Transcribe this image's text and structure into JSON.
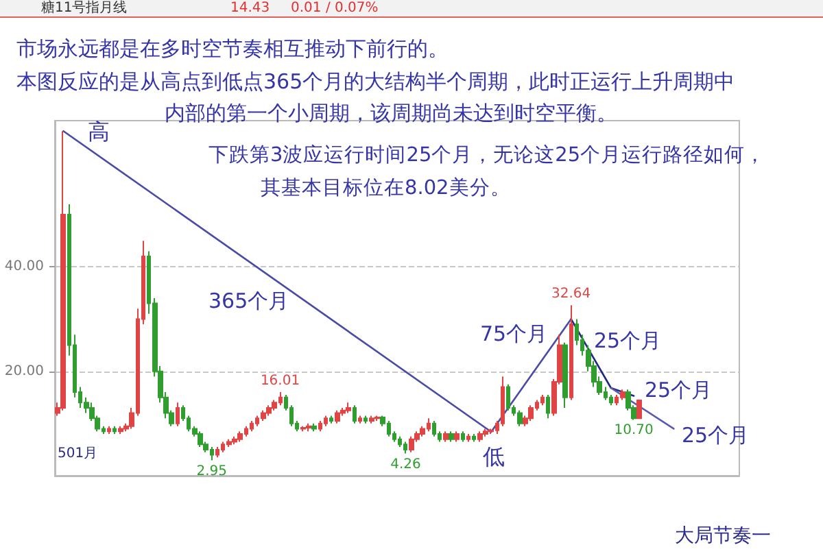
{
  "chart_data": {
    "type": "candlestick",
    "title": "糖11号指月线",
    "categories": [
      null,
      null,
      null,
      null,
      null,
      null,
      null,
      null,
      null,
      null,
      null,
      null,
      null,
      null,
      null,
      null,
      null,
      null,
      null,
      null,
      null,
      null,
      null,
      null,
      null,
      null,
      null,
      null,
      null,
      null,
      null,
      null,
      null,
      null,
      null,
      null,
      null,
      null,
      null,
      null,
      null,
      null,
      null,
      null,
      null,
      null,
      null,
      null,
      null,
      null,
      null,
      null,
      null,
      null,
      null,
      null,
      null,
      null,
      null,
      null,
      null,
      null,
      null,
      null,
      null,
      null,
      null,
      null,
      null,
      null,
      null,
      null,
      null,
      null,
      null,
      null,
      null,
      null,
      null,
      null,
      null,
      null,
      null,
      null,
      null,
      null,
      null,
      null,
      null,
      null,
      null,
      null,
      null,
      null,
      null,
      null,
      null,
      null,
      null,
      null,
      null,
      null,
      null,
      null,
      null,
      null,
      null,
      null,
      null,
      null,
      null,
      null,
      null,
      null,
      null,
      null,
      null,
      null,
      null,
      null
    ],
    "ylim": [
      0,
      68
    ],
    "yticks": [
      {
        "value": 20,
        "label": "20.00"
      },
      {
        "value": 40,
        "label": "40.00"
      }
    ],
    "grid": "y",
    "marker": "none",
    "series": [
      {
        "colors": [
          "#e04545",
          "#e04545",
          "#2f9e2f",
          "#2f9e2f",
          "#2f9e2f",
          "#2f9e2f",
          "#2f9e2f",
          "#2f9e2f",
          "#2f9e2f",
          "#e04545",
          "#2f9e2f",
          "#e04545",
          "#e04545",
          "#e04545",
          "#e04545",
          "#e04545",
          "#2f9e2f",
          "#2f9e2f",
          "#2f9e2f",
          "#2f9e2f",
          "#2f9e2f",
          "#e04545",
          "#2f9e2f",
          "#2f9e2f",
          "#2f9e2f",
          "#2f9e2f",
          "#2f9e2f",
          "#2f9e2f",
          "#e04545",
          "#e04545",
          "#e04545",
          "#e04545",
          "#e04545",
          "#e04545",
          "#e04545",
          "#e04545",
          "#e04545",
          "#e04545",
          "#e04545",
          "#e04545",
          "#2f9e2f",
          "#2f9e2f",
          "#2f9e2f",
          "#e04545",
          "#e04545",
          "#2f9e2f",
          "#e04545",
          "#e04545",
          "#2f9e2f",
          "#e04545",
          "#e04545",
          "#e04545",
          "#2f9e2f",
          "#e04545",
          "#2f9e2f",
          "#e04545",
          "#e04545",
          "#2f9e2f",
          "#2f9e2f",
          "#2f9e2f",
          "#2f9e2f",
          "#2f9e2f",
          "#e04545",
          "#e04545",
          "#e04545",
          "#e04545",
          "#2f9e2f",
          "#2f9e2f",
          "#e04545",
          "#2f9e2f",
          "#e04545",
          "#2f9e2f",
          "#e04545",
          "#2f9e2f",
          "#e04545",
          "#e04545",
          "#e04545",
          "#e04545",
          "#e04545",
          "#2f9e2f",
          "#2f9e2f",
          "#2f9e2f",
          "#e04545",
          "#e04545",
          "#e04545",
          "#e04545",
          "#2f9e2f",
          "#e04545",
          "#e04545",
          "#2f9e2f",
          "#e04545",
          "#2f9e2f",
          "#2f9e2f",
          "#2f9e2f",
          "#2f9e2f",
          "#2f9e2f",
          "#2f9e2f",
          "#2f9e2f",
          "#e04545",
          "#e04545",
          "#2f9e2f",
          "#2f9e2f",
          "#e04545",
          null,
          null,
          null,
          null,
          null,
          null,
          null,
          null,
          null,
          null,
          null,
          null,
          null,
          null,
          null,
          null,
          null
        ],
        "ohlc": [
          [
            12,
            14,
            11.5,
            13
          ],
          [
            13,
            66,
            12.5,
            50
          ],
          [
            50,
            52,
            23,
            25
          ],
          [
            25,
            27,
            15,
            16
          ],
          [
            16,
            17,
            13,
            14
          ],
          [
            14,
            15,
            12,
            13
          ],
          [
            13,
            14,
            10.5,
            11
          ],
          [
            11,
            11.5,
            8.5,
            9
          ],
          [
            9,
            9.5,
            8,
            8.5
          ],
          [
            8.5,
            9.5,
            8,
            9
          ],
          [
            9,
            9.5,
            8,
            8.5
          ],
          [
            8.5,
            9.5,
            8,
            9
          ],
          [
            9,
            10,
            8.5,
            9.5
          ],
          [
            9.5,
            13,
            9,
            12
          ],
          [
            12,
            32,
            11.5,
            30
          ],
          [
            30,
            45,
            29,
            42
          ],
          [
            42,
            43,
            31,
            33
          ],
          [
            33,
            34,
            19,
            20
          ],
          [
            20,
            21,
            14,
            15
          ],
          [
            15,
            16,
            11,
            12
          ],
          [
            12,
            12.5,
            9.5,
            10
          ],
          [
            10,
            14,
            9.5,
            13
          ],
          [
            13,
            13.5,
            10.5,
            11
          ],
          [
            11,
            11.5,
            8.5,
            9
          ],
          [
            9,
            9.5,
            7.5,
            8
          ],
          [
            8,
            8.5,
            5.5,
            6
          ],
          [
            6,
            6.5,
            4.5,
            5
          ],
          [
            5,
            5.5,
            2.95,
            4
          ],
          [
            4,
            5.5,
            3.5,
            5
          ],
          [
            5,
            6.5,
            4.5,
            6
          ],
          [
            6,
            7,
            5.5,
            6.5
          ],
          [
            6.5,
            7.5,
            6,
            7
          ],
          [
            7,
            8.5,
            6.5,
            8
          ],
          [
            8,
            9.5,
            7.5,
            9
          ],
          [
            9,
            10.5,
            8.5,
            10
          ],
          [
            10,
            11.5,
            9.5,
            11
          ],
          [
            11,
            12.5,
            10.5,
            12
          ],
          [
            12,
            13.5,
            11.5,
            13
          ],
          [
            13,
            14.5,
            12.5,
            14
          ],
          [
            14,
            16.01,
            13.5,
            15
          ],
          [
            15,
            15.5,
            12.5,
            13
          ],
          [
            13,
            13.5,
            9.5,
            10
          ],
          [
            10,
            10.5,
            8.5,
            9
          ],
          [
            9,
            9.5,
            8.5,
            9.2
          ],
          [
            9.2,
            10,
            8.5,
            9.5
          ],
          [
            9.5,
            10,
            8.5,
            9
          ],
          [
            9,
            10.5,
            8.5,
            10
          ],
          [
            10,
            11.5,
            9.5,
            11
          ],
          [
            11,
            11.5,
            10,
            10.5
          ],
          [
            10.5,
            12.5,
            10,
            12
          ],
          [
            12,
            13,
            11.5,
            12.5
          ],
          [
            12.5,
            14,
            12,
            13
          ],
          [
            13,
            13.5,
            10,
            10.5
          ],
          [
            10.5,
            11.5,
            10,
            11
          ],
          [
            11,
            11.5,
            10,
            10.5
          ],
          [
            10.5,
            11.5,
            10,
            11
          ],
          [
            11,
            11.5,
            10.5,
            11.2
          ],
          [
            11.2,
            11.5,
            9.5,
            10
          ],
          [
            10,
            10.5,
            7.5,
            8
          ],
          [
            8,
            8.5,
            6.5,
            7
          ],
          [
            7,
            7.5,
            5.5,
            6
          ],
          [
            6,
            6.5,
            4.26,
            5
          ],
          [
            5,
            7.5,
            4.5,
            7
          ],
          [
            7,
            8.5,
            6.5,
            8
          ],
          [
            8,
            9.5,
            7.5,
            9
          ],
          [
            9,
            11,
            8.5,
            10
          ],
          [
            10,
            10.5,
            7.5,
            8
          ],
          [
            8,
            8.5,
            6.5,
            7
          ],
          [
            7,
            8.5,
            6.5,
            8
          ],
          [
            8,
            8.5,
            6.5,
            7
          ],
          [
            7,
            8.5,
            6.5,
            8
          ],
          [
            8,
            8.5,
            6.5,
            7
          ],
          [
            7,
            8,
            6.5,
            7.5
          ],
          [
            7.5,
            8,
            6.5,
            7
          ],
          [
            7,
            8.5,
            6.5,
            8
          ],
          [
            8,
            9,
            7.5,
            8.5
          ],
          [
            8.5,
            9,
            8,
            8.7
          ],
          [
            8.7,
            10.5,
            8,
            10
          ],
          [
            10,
            19,
            9.5,
            17
          ],
          [
            17,
            17.5,
            12.5,
            13
          ],
          [
            13,
            13.5,
            11.5,
            12
          ],
          [
            12,
            12.5,
            9.5,
            10
          ],
          [
            10,
            11.5,
            9.5,
            11
          ],
          [
            11,
            13.5,
            10.5,
            13
          ],
          [
            13,
            14.5,
            12.5,
            14
          ],
          [
            14,
            15.5,
            13.5,
            15
          ],
          [
            15,
            15.5,
            11,
            12
          ],
          [
            12,
            18.5,
            11.5,
            18
          ],
          [
            18,
            27,
            17.5,
            25
          ],
          [
            25,
            25.5,
            13,
            15
          ],
          [
            15,
            32.64,
            14.5,
            29
          ],
          [
            29,
            30,
            25,
            26
          ],
          [
            26,
            27,
            23,
            24
          ],
          [
            24,
            25,
            20,
            21
          ],
          [
            21,
            22,
            17,
            18
          ],
          [
            18,
            19,
            15.5,
            16
          ],
          [
            16,
            17,
            14.5,
            15
          ],
          [
            15,
            15.5,
            13.5,
            14
          ],
          [
            14,
            15.5,
            13.5,
            15
          ],
          [
            15,
            16.5,
            14.5,
            16
          ],
          [
            16,
            16.5,
            12.5,
            13
          ],
          [
            13,
            13.5,
            10.7,
            11
          ],
          [
            11,
            14.6,
            10.9,
            14.43
          ],
          null,
          null,
          null,
          null,
          null,
          null,
          null,
          null,
          null,
          null,
          null,
          null,
          null,
          null,
          null,
          null,
          null
        ]
      },
      {
        "type": "line",
        "color": "#4a4aa8",
        "line_style": "solid",
        "values": [
          null,
          66,
          null,
          null,
          null,
          null,
          null,
          null,
          null,
          null,
          null,
          null,
          null,
          null,
          null,
          null,
          null,
          null,
          null,
          null,
          null,
          null,
          null,
          null,
          null,
          null,
          null,
          null,
          null,
          null,
          null,
          null,
          null,
          null,
          null,
          null,
          null,
          null,
          null,
          null,
          null,
          null,
          null,
          null,
          null,
          null,
          null,
          null,
          null,
          null,
          null,
          null,
          null,
          null,
          null,
          null,
          null,
          null,
          null,
          null,
          null,
          null,
          null,
          null,
          null,
          null,
          null,
          null,
          null,
          null,
          null,
          null,
          null,
          null,
          null,
          null,
          8.4,
          null,
          null,
          null,
          null,
          null,
          null,
          null,
          null,
          null,
          null,
          null,
          null,
          null,
          30,
          null,
          null,
          null,
          null,
          null,
          null,
          null,
          null,
          null,
          null,
          null,
          null,
          null,
          null,
          null,
          null,
          null,
          null,
          null,
          null,
          null,
          null,
          null,
          null,
          null,
          null,
          null,
          null,
          null
        ]
      },
      {
        "type": "line",
        "color": "#1f2a80",
        "line_style": "solid",
        "values": [
          null,
          null,
          null,
          null,
          null,
          null,
          null,
          null,
          null,
          null,
          null,
          null,
          null,
          null,
          null,
          null,
          null,
          null,
          null,
          null,
          null,
          null,
          null,
          null,
          null,
          null,
          null,
          null,
          null,
          null,
          null,
          null,
          null,
          null,
          null,
          null,
          null,
          null,
          null,
          null,
          null,
          null,
          null,
          null,
          null,
          null,
          null,
          null,
          null,
          null,
          null,
          null,
          null,
          null,
          null,
          null,
          null,
          null,
          null,
          null,
          null,
          null,
          null,
          null,
          null,
          null,
          null,
          null,
          null,
          null,
          null,
          null,
          null,
          null,
          null,
          null,
          null,
          null,
          null,
          null,
          null,
          null,
          null,
          null,
          null,
          null,
          null,
          null,
          null,
          null,
          30,
          null,
          null,
          null,
          null,
          null,
          null,
          16.8,
          null,
          null,
          null,
          15.3,
          null,
          null,
          null,
          null,
          null,
          null,
          null,
          null,
          null,
          null,
          null,
          null,
          null,
          null,
          null,
          null,
          null,
          null
        ]
      },
      {
        "type": "line",
        "color": "#5a5ab0",
        "line_style": "solid",
        "values": [
          null,
          null,
          null,
          null,
          null,
          null,
          null,
          null,
          null,
          null,
          null,
          null,
          null,
          null,
          null,
          null,
          null,
          null,
          null,
          null,
          null,
          null,
          null,
          null,
          null,
          null,
          null,
          null,
          null,
          null,
          null,
          null,
          null,
          null,
          null,
          null,
          null,
          null,
          null,
          null,
          null,
          null,
          null,
          null,
          null,
          null,
          null,
          null,
          null,
          null,
          null,
          null,
          null,
          null,
          null,
          null,
          null,
          null,
          null,
          null,
          null,
          null,
          null,
          null,
          null,
          null,
          null,
          null,
          null,
          null,
          null,
          null,
          null,
          null,
          null,
          null,
          null,
          null,
          null,
          null,
          null,
          null,
          null,
          null,
          null,
          null,
          null,
          null,
          null,
          null,
          null,
          null,
          null,
          null,
          null,
          null,
          null,
          16.8,
          null,
          null,
          null,
          null,
          null,
          null,
          null,
          null,
          null,
          null,
          9,
          null,
          null,
          null,
          null,
          null,
          null,
          null,
          null,
          null,
          null,
          null
        ]
      }
    ],
    "annotations": [
      "市场永远都是在多时空节奏相互推动下前行的。",
      "本图反应的是从高点到低点365个月的大结构半个周期，此时正运行上升周期中",
      "内部的第一个小周期，该周期尚未达到时空平衡。",
      "下跌第3波应运行时间25个月，无论这25个月运行路径如何，",
      "其基本目标位在8.02美分。",
      "高",
      "365个月",
      "低",
      "75个月",
      "25个月",
      "25个月",
      "25个月",
      "501月",
      "大局节奏一",
      "14.43",
      "0.01 / 0.07%",
      {
        "text": "16.01",
        "y": 16.01
      },
      {
        "text": "2.95",
        "y": 2.95
      },
      {
        "text": "4.26",
        "y": 4.26
      },
      {
        "text": "32.64",
        "y": 32.64
      },
      {
        "text": "10.70",
        "y": 10.7
      }
    ]
  }
}
